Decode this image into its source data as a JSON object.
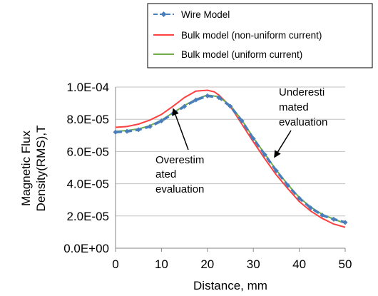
{
  "chart_data": {
    "type": "line",
    "xlabel": "Distance, mm",
    "ylabel_lines": [
      "Magnetic Flux",
      "Density(RMS),T"
    ],
    "xlim": [
      0,
      50
    ],
    "ylim": [
      0,
      0.0001
    ],
    "xticks": [
      "0",
      "10",
      "20",
      "30",
      "40",
      "50"
    ],
    "yticks": [
      "0.0E+00",
      "2.0E-05",
      "4.0E-05",
      "6.0E-05",
      "8.0E-05",
      "1.0E-04"
    ],
    "grid": "horizontal",
    "legend_position": "top-right",
    "series": [
      {
        "name": "Wire Model",
        "color": "#4a7ebb",
        "marker": "diamond",
        "style": "dashed",
        "x": [
          0,
          2.5,
          5,
          7.5,
          10,
          12.5,
          15,
          17.5,
          20,
          22.5,
          25,
          27.5,
          30,
          32.5,
          35,
          37.5,
          40,
          42.5,
          45,
          47.5,
          50
        ],
        "y": [
          7.2e-05,
          7.25e-05,
          7.35e-05,
          7.55e-05,
          7.9e-05,
          8.35e-05,
          8.8e-05,
          9.2e-05,
          9.45e-05,
          9.35e-05,
          8.8e-05,
          7.9e-05,
          6.8e-05,
          5.8e-05,
          4.8e-05,
          3.9e-05,
          3.1e-05,
          2.5e-05,
          2.05e-05,
          1.8e-05,
          1.6e-05
        ]
      },
      {
        "name": "Bulk model (non-uniform current)",
        "color": "#ff4040",
        "style": "solid",
        "x": [
          0,
          2.5,
          5,
          7.5,
          10,
          12.5,
          15,
          17.5,
          20,
          21.5,
          22.5,
          25,
          27.5,
          30,
          32.5,
          35,
          37.5,
          40,
          42.5,
          45,
          47.5,
          50
        ],
        "y": [
          7.5e-05,
          7.55e-05,
          7.7e-05,
          7.95e-05,
          8.3e-05,
          8.8e-05,
          9.35e-05,
          9.75e-05,
          9.8e-05,
          9.7e-05,
          9.5e-05,
          8.8e-05,
          7.7e-05,
          6.6e-05,
          5.55e-05,
          4.55e-05,
          3.7e-05,
          2.9e-05,
          2.3e-05,
          1.85e-05,
          1.5e-05,
          1.3e-05
        ]
      },
      {
        "name": "Bulk model (uniform current)",
        "color": "#70ad47",
        "style": "solid",
        "x": [
          0,
          2.5,
          5,
          7.5,
          10,
          12.5,
          15,
          17.5,
          20,
          22.5,
          25,
          27.5,
          30,
          32.5,
          35,
          37.5,
          40,
          42.5,
          45,
          47.5,
          50
        ],
        "y": [
          7.25e-05,
          7.3e-05,
          7.4e-05,
          7.6e-05,
          7.95e-05,
          8.4e-05,
          8.85e-05,
          9.25e-05,
          9.5e-05,
          9.4e-05,
          8.85e-05,
          7.95e-05,
          6.85e-05,
          5.85e-05,
          4.85e-05,
          3.95e-05,
          3.15e-05,
          2.55e-05,
          2.1e-05,
          1.8e-05,
          1.55e-05
        ]
      }
    ],
    "annotations": [
      {
        "lines": [
          "Overestim",
          "ated",
          "evaluation"
        ],
        "arrow_to_x": 12.5,
        "arrow_to_y": 8.7e-05
      },
      {
        "lines": [
          "Underesti",
          "mated",
          "evaluation"
        ],
        "arrow_to_x": 34.5,
        "arrow_to_y": 5.6e-05
      }
    ]
  }
}
